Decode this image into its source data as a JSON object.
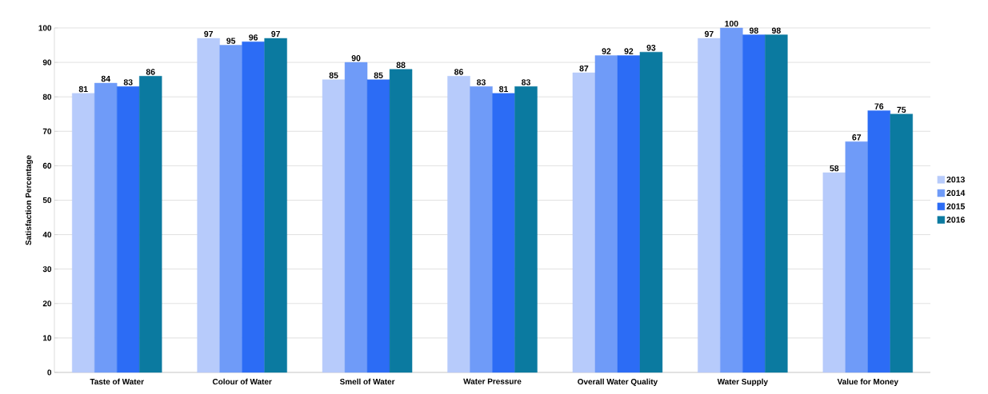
{
  "chart_data": {
    "type": "bar",
    "ylabel": "Satisfaction Percentage",
    "categories": [
      "Taste of Water",
      "Colour of Water",
      "Smell of Water",
      "Water Pressure",
      "Overall Water Quality",
      "Water Supply",
      "Value for Money"
    ],
    "series": [
      {
        "name": "2013",
        "color": "#b7cbfb",
        "values": [
          81,
          97,
          85,
          86,
          87,
          97,
          58
        ]
      },
      {
        "name": "2014",
        "color": "#6f9bf8",
        "values": [
          84,
          95,
          90,
          83,
          92,
          100,
          67
        ]
      },
      {
        "name": "2015",
        "color": "#2c6cf5",
        "values": [
          83,
          96,
          85,
          81,
          92,
          98,
          76
        ]
      },
      {
        "name": "2016",
        "color": "#0b7aa0",
        "values": [
          86,
          97,
          88,
          83,
          93,
          98,
          75
        ]
      }
    ],
    "ylim": [
      0,
      100
    ],
    "yticks": [
      0,
      10,
      20,
      30,
      40,
      50,
      60,
      70,
      80,
      90,
      100
    ],
    "grid": "y",
    "legend": "right",
    "data_labels": true
  }
}
